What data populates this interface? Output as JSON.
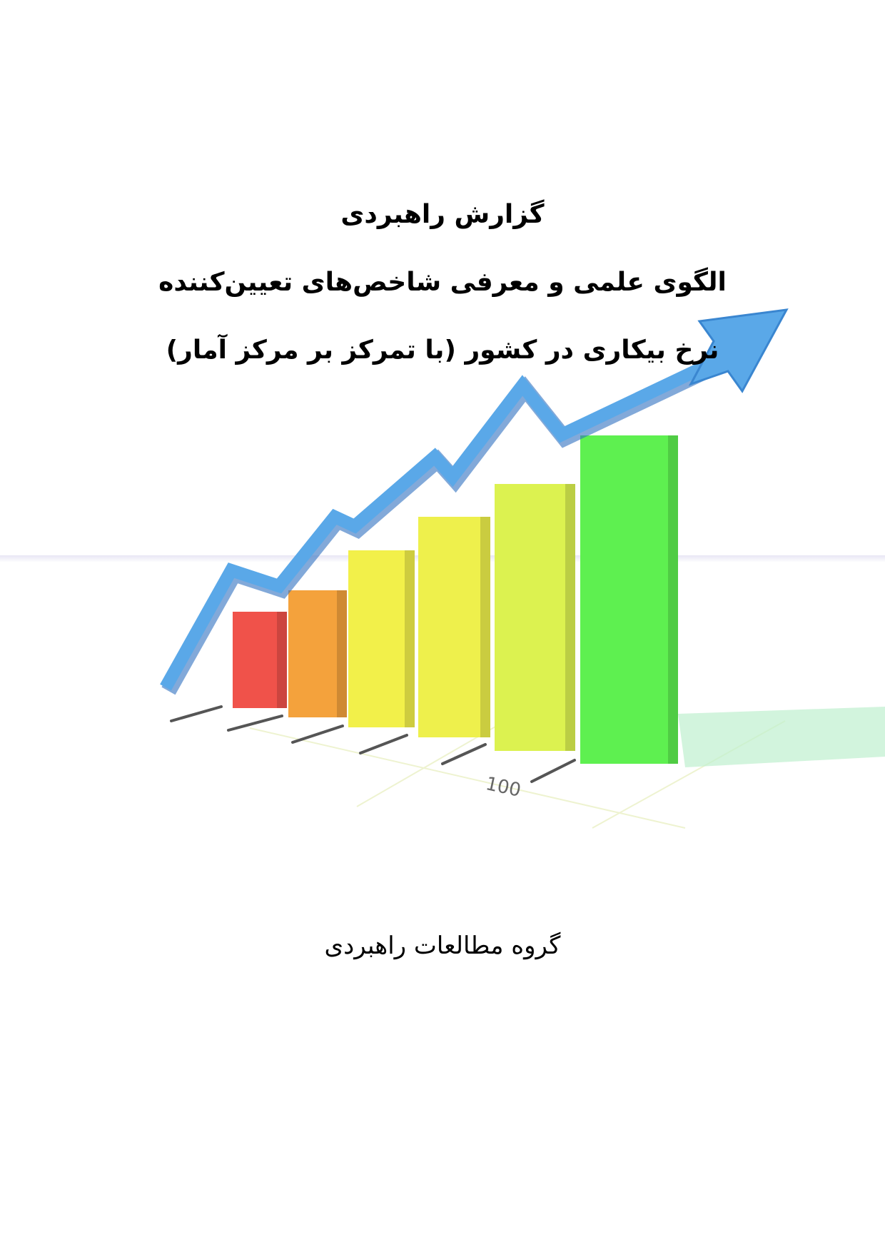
{
  "header": {
    "report_type": "گزارش راهبردی",
    "title_line1": "الگوی علمی و معرفی شاخص‌های تعیین‌کننده",
    "title_line2": "نرخ بیکاری در کشور (با تمرکز بر مرکز آمار)"
  },
  "illustration": {
    "axis_label": "100",
    "bar_colors": [
      "#f0524a",
      "#f4a23c",
      "#f2f04a",
      "#eef04c",
      "#dcf250",
      "#5ef050"
    ],
    "arrow_color": "#5aa8e8"
  },
  "footer": {
    "publisher": "گروه مطالعات راهبردی"
  }
}
